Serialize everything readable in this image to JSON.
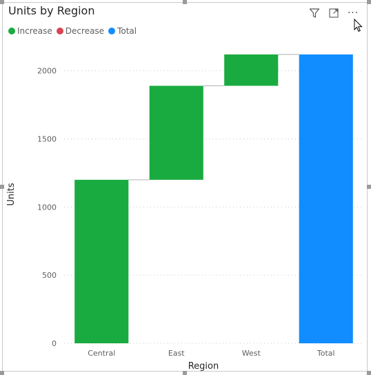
{
  "visual": {
    "title": "Units by Region",
    "more_label": "···",
    "toolbar_icons": [
      "filter-icon",
      "focus-mode-icon",
      "more-options-icon"
    ]
  },
  "legend": [
    {
      "label": "Increase",
      "color": "#1aab40"
    },
    {
      "label": "Decrease",
      "color": "#d64550"
    },
    {
      "label": "Total",
      "color": "#118dff"
    }
  ],
  "chart_data": {
    "type": "bar",
    "subtype": "waterfall",
    "title": "Units by Region",
    "xlabel": "Region",
    "ylabel": "Units",
    "categories": [
      "Central",
      "East",
      "West",
      "Total"
    ],
    "values": [
      1200,
      690,
      230,
      2120
    ],
    "kinds": [
      "increase",
      "increase",
      "increase",
      "total"
    ],
    "ylim": [
      0,
      2120
    ],
    "yticks": [
      0,
      500,
      1000,
      1500,
      2000
    ],
    "grid": true,
    "legend_position": "top-left",
    "colors": {
      "increase": "#1aab40",
      "decrease": "#d64550",
      "total": "#118dff"
    }
  }
}
